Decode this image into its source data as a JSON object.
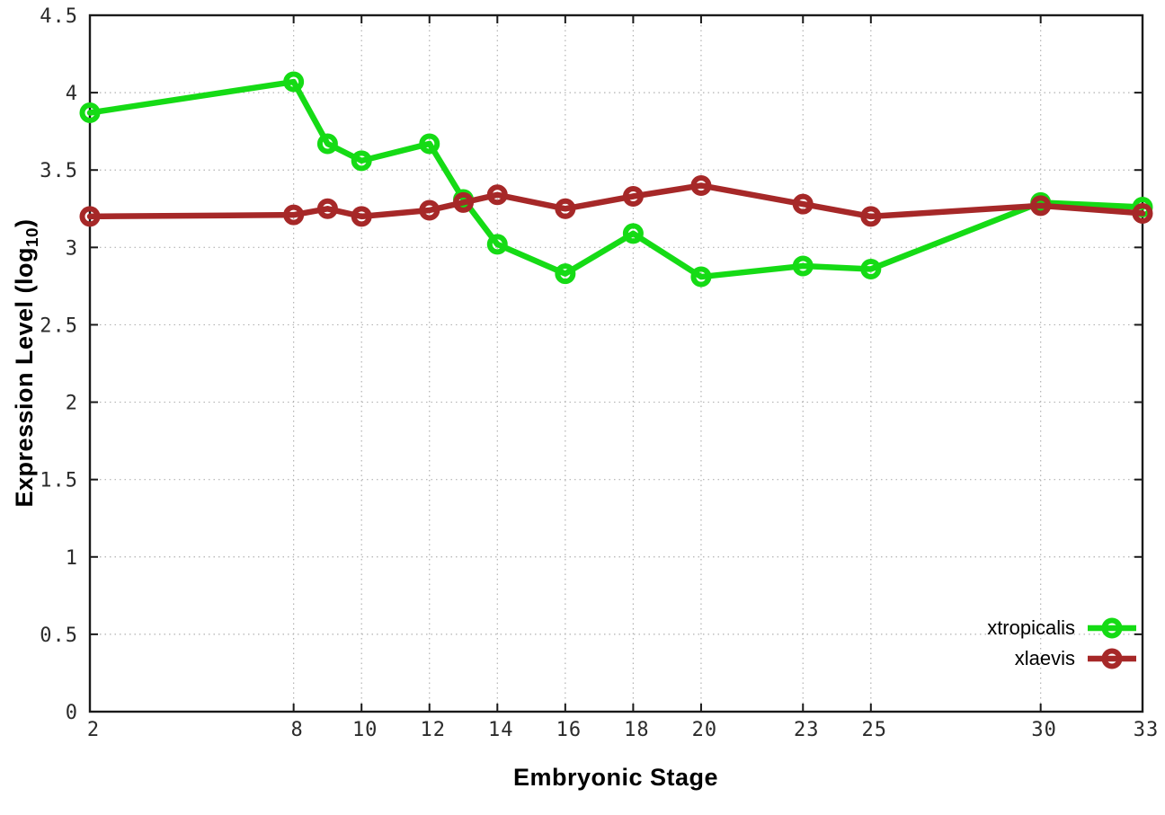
{
  "chart_data": {
    "type": "line",
    "title": "",
    "xlabel": "Embryonic Stage",
    "ylabel": "Expression Level (log10)",
    "ylabel_parts": {
      "main": "Expression Level (log",
      "sub": "10",
      "end": ")"
    },
    "xlim": [
      2,
      33
    ],
    "ylim": [
      0,
      4.5
    ],
    "grid": true,
    "legend_position": "bottom-right",
    "x_ticks": [
      2,
      8,
      10,
      12,
      14,
      16,
      18,
      20,
      23,
      25,
      30,
      33
    ],
    "x_tick_labels": [
      "2",
      "8",
      "10",
      "12",
      "14",
      "16",
      "18",
      "20",
      "23",
      "25",
      "30",
      "33"
    ],
    "y_ticks": [
      0,
      0.5,
      1,
      1.5,
      2,
      2.5,
      3,
      3.5,
      4,
      4.5
    ],
    "y_tick_labels": [
      "0",
      "0.5",
      "1",
      "1.5",
      "2",
      "2.5",
      "3",
      "3.5",
      "4",
      "4.5"
    ],
    "x": [
      2,
      8,
      9,
      10,
      12,
      13,
      14,
      16,
      18,
      20,
      23,
      25,
      30,
      33
    ],
    "series": [
      {
        "name": "xtropicalis",
        "color": "#15db15",
        "marker": "open-circle",
        "values": [
          3.87,
          4.07,
          3.67,
          3.56,
          3.67,
          3.31,
          3.02,
          2.83,
          3.09,
          2.81,
          2.88,
          2.86,
          3.29,
          3.26
        ]
      },
      {
        "name": "xlaevis",
        "color": "#a62828",
        "marker": "open-circle",
        "values": [
          3.2,
          3.21,
          3.25,
          3.2,
          3.24,
          3.29,
          3.34,
          3.25,
          3.33,
          3.4,
          3.28,
          3.2,
          3.27,
          3.22
        ]
      }
    ],
    "colors": {
      "grid": "#b2b2b2",
      "border": "#1a1a1a",
      "tick_text": "#2b2b2b",
      "background": "#ffffff"
    }
  }
}
